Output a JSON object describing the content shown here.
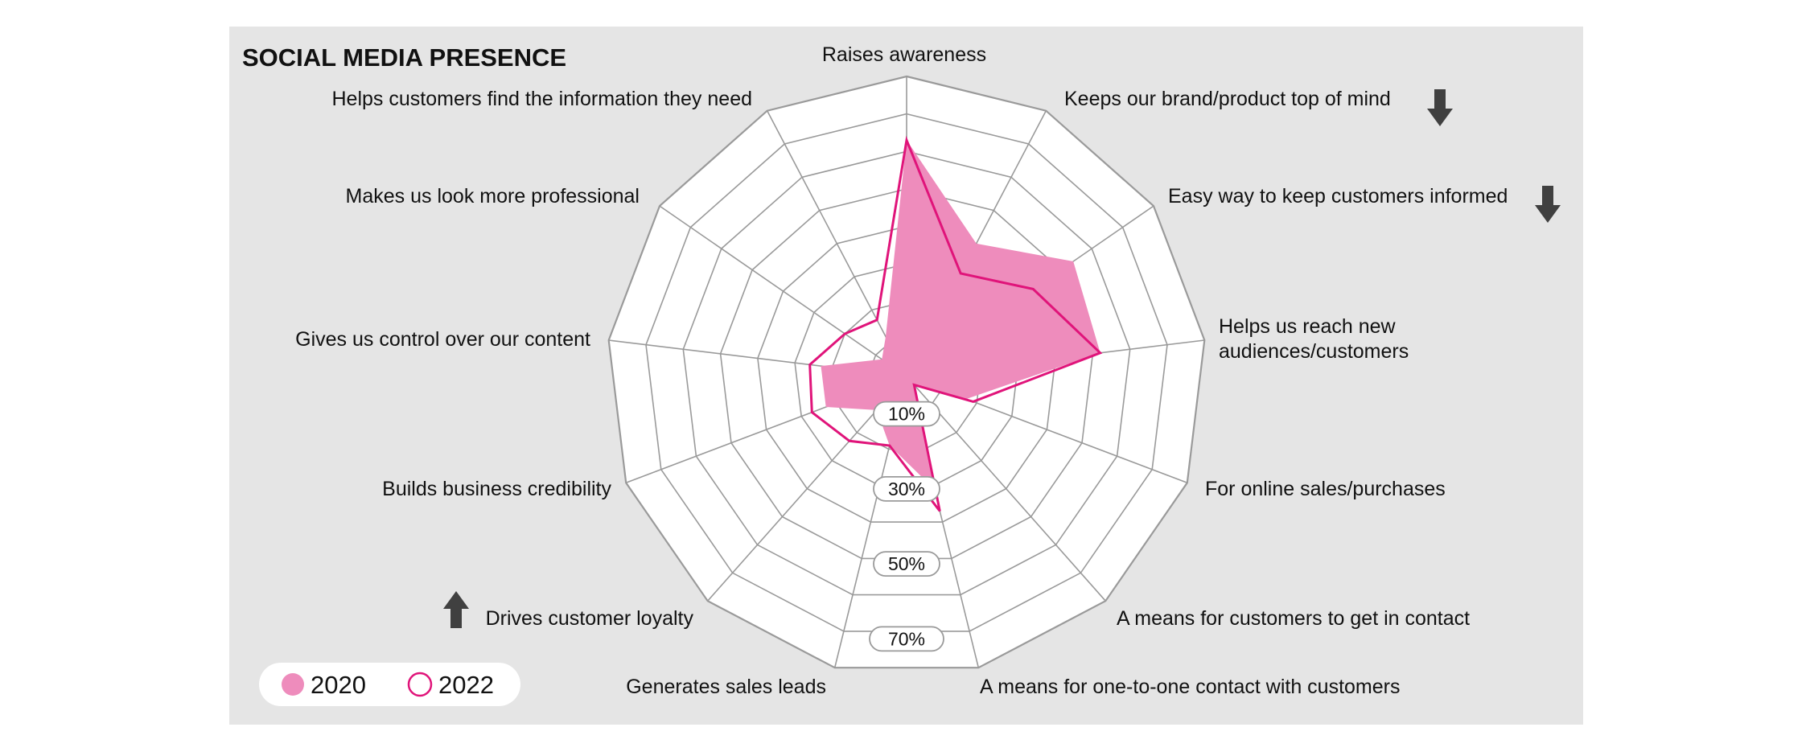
{
  "chart_data": {
    "type": "radar",
    "title": "SOCIAL MEDIA PRESENCE",
    "axes": [
      {
        "label": [
          "Raises awareness"
        ],
        "trend": ""
      },
      {
        "label": [
          "Keeps our brand/product top of mind"
        ],
        "trend": "down"
      },
      {
        "label": [
          "Easy way to keep customers informed"
        ],
        "trend": "down"
      },
      {
        "label": [
          "Helps us reach new",
          "audiences/customers"
        ],
        "trend": ""
      },
      {
        "label": [
          "For online sales/purchases"
        ],
        "trend": ""
      },
      {
        "label": [
          "A means for customers to get in contact"
        ],
        "trend": ""
      },
      {
        "label": [
          "A means for one-to-one contact with customers"
        ],
        "trend": ""
      },
      {
        "label": [
          "Generates sales leads"
        ],
        "trend": ""
      },
      {
        "label": [
          "Drives customer loyalty"
        ],
        "trend": "up"
      },
      {
        "label": [
          "Builds business credibility"
        ],
        "trend": ""
      },
      {
        "label": [
          "Gives us control over our content"
        ],
        "trend": ""
      },
      {
        "label": [
          "Makes us look more professional"
        ],
        "trend": ""
      },
      {
        "label": [
          "Helps customers find the information they need"
        ],
        "trend": ""
      }
    ],
    "scale": {
      "min": 0,
      "max": 80,
      "rings": [
        10,
        20,
        30,
        40,
        50,
        60,
        70,
        80
      ]
    },
    "tick_labels": [
      "10%",
      "30%",
      "50%",
      "70%"
    ],
    "tick_values": [
      10,
      30,
      50,
      70
    ],
    "series": [
      {
        "name": "2020",
        "style": "filled",
        "values": [
          63,
          40,
          54,
          52,
          17,
          3,
          31,
          19,
          12,
          23,
          23,
          8,
          12
        ]
      },
      {
        "name": "2022",
        "style": "outline",
        "values": [
          63,
          31,
          41,
          52,
          19,
          3,
          37,
          19,
          23,
          27,
          26,
          20,
          17
        ]
      }
    ],
    "colors": {
      "fill_2020": "#ee8cbc",
      "line_2022": "#e0147a",
      "panel": "#e5e5e5",
      "grid": "#9a9a9a",
      "arrow": "#404040"
    },
    "legend": {
      "position": "bottom-left",
      "items": [
        "2020",
        "2022"
      ]
    }
  }
}
